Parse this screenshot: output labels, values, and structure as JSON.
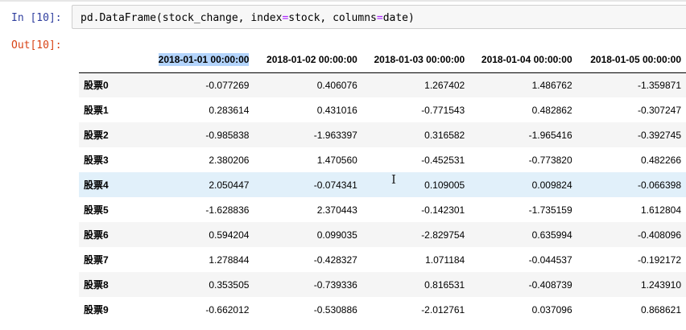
{
  "cell": {
    "in_prompt": "In [10]:",
    "code_parts": [
      "pd.DataFrame(stock_change, index",
      "=",
      "stock, columns",
      "=",
      "date)"
    ],
    "out_prompt": "Out[10]:"
  },
  "table": {
    "columns": [
      "2018-01-01 00:00:00",
      "2018-01-02 00:00:00",
      "2018-01-03 00:00:00",
      "2018-01-04 00:00:00",
      "2018-01-05 00:00:00"
    ],
    "rows": [
      {
        "index": "股票0",
        "values": [
          "-0.077269",
          "0.406076",
          "1.267402",
          "1.486762",
          "-1.359871"
        ]
      },
      {
        "index": "股票1",
        "values": [
          "0.283614",
          "0.431016",
          "-0.771543",
          "0.482862",
          "-0.307247"
        ]
      },
      {
        "index": "股票2",
        "values": [
          "-0.985838",
          "-1.963397",
          "0.316582",
          "-1.965416",
          "-0.392745"
        ]
      },
      {
        "index": "股票3",
        "values": [
          "2.380206",
          "1.470560",
          "-0.452531",
          "-0.773820",
          "0.482266"
        ]
      },
      {
        "index": "股票4",
        "values": [
          "2.050447",
          "-0.074341",
          "0.109005",
          "0.009824",
          "-0.066398"
        ]
      },
      {
        "index": "股票5",
        "values": [
          "-1.628836",
          "2.370443",
          "-0.142301",
          "-1.735159",
          "1.612804"
        ]
      },
      {
        "index": "股票6",
        "values": [
          "0.594204",
          "0.099035",
          "-2.829754",
          "0.635994",
          "-0.408096"
        ]
      },
      {
        "index": "股票7",
        "values": [
          "1.278844",
          "-0.428327",
          "1.071184",
          "-0.044537",
          "-0.192172"
        ]
      },
      {
        "index": "股票8",
        "values": [
          "0.353505",
          "-0.739336",
          "0.816531",
          "-0.408739",
          "1.243910"
        ]
      },
      {
        "index": "股票9",
        "values": [
          "-0.662012",
          "-0.530886",
          "-2.012761",
          "0.037096",
          "0.868621"
        ]
      }
    ],
    "selected_header_index": 0,
    "hovered_row_index": 4
  },
  "icons": {
    "cursor": "text-cursor-icon"
  },
  "colors": {
    "in_prompt": "#303f9f",
    "out_prompt": "#d84315",
    "operator": "#aa22ff",
    "selection": "#b3d4fc",
    "row_hover": "#e1f0fa"
  }
}
